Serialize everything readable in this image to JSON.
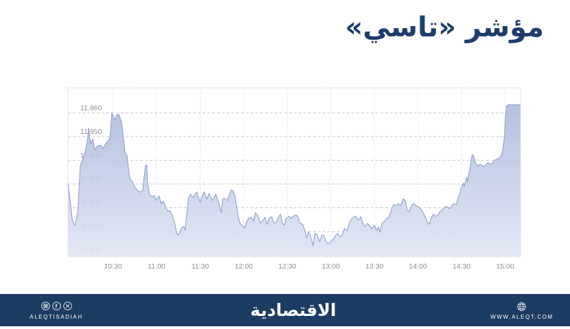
{
  "title": {
    "text": "مؤشر «تاسي»",
    "color": "#1e3d6d"
  },
  "footer": {
    "bar_color": "#1d3c64",
    "left": {
      "icons": [
        "instagram-icon",
        "facebook-icon",
        "x-icon"
      ],
      "label": "ALEQTISADIAH"
    },
    "center": {
      "logo_text": "الاقتصادية"
    },
    "right": {
      "icon": "globe-icon",
      "label": "WWW.ALEQT.COM"
    }
  },
  "chart_data": {
    "type": "area",
    "title": "TASI index intraday",
    "xlabel": "",
    "ylabel": "",
    "x_unit": "minutes after 10:00",
    "xlim": [
      -1,
      310.6
    ],
    "ylim": [
      11899.3,
      11970.5
    ],
    "grid": true,
    "x_ticks": [
      {
        "t": 30,
        "label": "10:30"
      },
      {
        "t": 60,
        "label": "11:00"
      },
      {
        "t": 90,
        "label": "11:30"
      },
      {
        "t": 120,
        "label": "12:00"
      },
      {
        "t": 150,
        "label": "12:30"
      },
      {
        "t": 180,
        "label": "13:00"
      },
      {
        "t": 210,
        "label": "13:30"
      },
      {
        "t": 240,
        "label": "14:00"
      },
      {
        "t": 270,
        "label": "14:30"
      },
      {
        "t": 300,
        "label": "15:00"
      }
    ],
    "y_ticks": [
      {
        "v": 11900,
        "label": "11.900"
      },
      {
        "v": 11910,
        "label": "11.910"
      },
      {
        "v": 11920,
        "label": "11.920"
      },
      {
        "v": 11930,
        "label": "11.930"
      },
      {
        "v": 11940,
        "label": "11.940"
      },
      {
        "v": 11950,
        "label": "11.950"
      },
      {
        "v": 11960,
        "label": "11.960"
      }
    ],
    "grid_color": "#c9c9c9",
    "border_color": "#b3b3b3",
    "label_color": "#8e8e8e",
    "area_fill_top": "#a4b3d9",
    "area_fill_bottom": "#e0e5f3",
    "line_color": "#8da0cc",
    "series": [
      {
        "name": "TASI",
        "points": [
          [
            -1,
            11930
          ],
          [
            0.9,
            11921
          ],
          [
            1.9,
            11915
          ],
          [
            3.8,
            11912.4
          ],
          [
            5.7,
            11918
          ],
          [
            7.5,
            11938
          ],
          [
            9.9,
            11941.7
          ],
          [
            12.2,
            11947.4
          ],
          [
            13.2,
            11953.6
          ],
          [
            14.6,
            11946.9
          ],
          [
            16,
            11949
          ],
          [
            17.4,
            11944.6
          ],
          [
            19.3,
            11946
          ],
          [
            21.7,
            11946.3
          ],
          [
            23.1,
            11944.9
          ],
          [
            25.4,
            11947.4
          ],
          [
            27.8,
            11949
          ],
          [
            28.5,
            11954
          ],
          [
            29.2,
            11960
          ],
          [
            31.1,
            11957
          ],
          [
            32.5,
            11959
          ],
          [
            33.9,
            11959.4
          ],
          [
            35.8,
            11956.2
          ],
          [
            37.2,
            11949.8
          ],
          [
            38.1,
            11943.4
          ],
          [
            39.6,
            11942
          ],
          [
            41,
            11934.4
          ],
          [
            41.9,
            11931.8
          ],
          [
            43.3,
            11931
          ],
          [
            45.2,
            11928.6
          ],
          [
            46.6,
            11927.5
          ],
          [
            48,
            11926.6
          ],
          [
            50.4,
            11927.2
          ],
          [
            52.3,
            11937.6
          ],
          [
            53.2,
            11938.2
          ],
          [
            53.7,
            11931
          ],
          [
            55.1,
            11925.7
          ],
          [
            57,
            11924.6
          ],
          [
            58.4,
            11925.1
          ],
          [
            59.8,
            11923.1
          ],
          [
            61.7,
            11925.1
          ],
          [
            63.1,
            11921.7
          ],
          [
            64.5,
            11922.8
          ],
          [
            66.4,
            11920.2
          ],
          [
            67.8,
            11918.5
          ],
          [
            69.2,
            11918.8
          ],
          [
            71.1,
            11916.4
          ],
          [
            72.5,
            11913.5
          ],
          [
            73.9,
            11909.2
          ],
          [
            74.9,
            11908.6
          ],
          [
            76.3,
            11909.8
          ],
          [
            77.2,
            11911.5
          ],
          [
            78.7,
            11912.1
          ],
          [
            79.6,
            11910.6
          ],
          [
            82,
            11924.3
          ],
          [
            83.4,
            11925.7
          ],
          [
            85.2,
            11924.3
          ],
          [
            87.6,
            11926.6
          ],
          [
            90,
            11922.2
          ],
          [
            91.4,
            11925.1
          ],
          [
            92.8,
            11926.6
          ],
          [
            94.7,
            11923.7
          ],
          [
            96.1,
            11926
          ],
          [
            98.4,
            11923.1
          ],
          [
            100.8,
            11925.7
          ],
          [
            103.1,
            11921.4
          ],
          [
            104.6,
            11917.9
          ],
          [
            105.5,
            11923.7
          ],
          [
            106.9,
            11924
          ],
          [
            108.8,
            11923.1
          ],
          [
            111.2,
            11927.5
          ],
          [
            112.6,
            11927.2
          ],
          [
            114,
            11925.1
          ],
          [
            115.9,
            11917.3
          ],
          [
            117.3,
            11913.5
          ],
          [
            118.7,
            11912.7
          ],
          [
            120.6,
            11911.5
          ],
          [
            122,
            11914.1
          ],
          [
            123.4,
            11915.6
          ],
          [
            125.3,
            11915.9
          ],
          [
            126.7,
            11914.4
          ],
          [
            128.1,
            11917.9
          ],
          [
            130,
            11916.4
          ],
          [
            131.4,
            11913.5
          ],
          [
            132.8,
            11914.4
          ],
          [
            134.7,
            11915.9
          ],
          [
            136.1,
            11913
          ],
          [
            137.5,
            11915.6
          ],
          [
            139.4,
            11916.2
          ],
          [
            140.8,
            11913.5
          ],
          [
            142.2,
            11913.8
          ],
          [
            144.1,
            11916.4
          ],
          [
            145.5,
            11917.3
          ],
          [
            146.5,
            11913.5
          ],
          [
            147.9,
            11912.7
          ],
          [
            149.3,
            11915.6
          ],
          [
            151.2,
            11916.4
          ],
          [
            152.6,
            11915.6
          ],
          [
            154,
            11916.4
          ],
          [
            155.9,
            11917
          ],
          [
            157.3,
            11916.2
          ],
          [
            158.7,
            11913.5
          ],
          [
            160.6,
            11913
          ],
          [
            162,
            11910.6
          ],
          [
            163.4,
            11907.2
          ],
          [
            164.4,
            11909.8
          ],
          [
            165.8,
            11908.6
          ],
          [
            167.7,
            11904
          ],
          [
            169.1,
            11909.2
          ],
          [
            170.5,
            11908.6
          ],
          [
            172.4,
            11905.7
          ],
          [
            173.8,
            11908.6
          ],
          [
            175.2,
            11908.3
          ],
          [
            177.1,
            11905.4
          ],
          [
            178.5,
            11904.8
          ],
          [
            179.9,
            11905.7
          ],
          [
            181.8,
            11906.9
          ],
          [
            183.2,
            11908.3
          ],
          [
            184.6,
            11909.2
          ],
          [
            186.5,
            11907.7
          ],
          [
            187.9,
            11908.6
          ],
          [
            189.3,
            11911.2
          ],
          [
            191.2,
            11910.4
          ],
          [
            192.6,
            11913.5
          ],
          [
            194,
            11915
          ],
          [
            195.9,
            11916.2
          ],
          [
            197.3,
            11916.4
          ],
          [
            198.7,
            11914.7
          ],
          [
            200.6,
            11916.2
          ],
          [
            202,
            11913.5
          ],
          [
            203.4,
            11912.1
          ],
          [
            205.3,
            11913.5
          ],
          [
            206.7,
            11912.1
          ],
          [
            208.1,
            11911.2
          ],
          [
            210,
            11912.7
          ],
          [
            211.4,
            11910.6
          ],
          [
            212.8,
            11911.8
          ],
          [
            213.8,
            11909.7
          ],
          [
            215.2,
            11913.5
          ],
          [
            217.1,
            11914.4
          ],
          [
            218.5,
            11915.6
          ],
          [
            219.9,
            11915.9
          ],
          [
            221.8,
            11919.3
          ],
          [
            223.2,
            11921.4
          ],
          [
            224.6,
            11920.8
          ],
          [
            226.5,
            11921.7
          ],
          [
            227.9,
            11920.8
          ],
          [
            229.3,
            11922.8
          ],
          [
            229.8,
            11923.7
          ],
          [
            231.2,
            11923.1
          ],
          [
            232.6,
            11918.8
          ],
          [
            234,
            11918.5
          ],
          [
            235.9,
            11921.4
          ],
          [
            237.3,
            11921.7
          ],
          [
            238.8,
            11920.8
          ],
          [
            240.7,
            11920.2
          ],
          [
            242.1,
            11919.3
          ],
          [
            243.5,
            11917.9
          ],
          [
            245.4,
            11915.6
          ],
          [
            246.8,
            11913.5
          ],
          [
            247.7,
            11913
          ],
          [
            249.1,
            11915.6
          ],
          [
            250.5,
            11917.3
          ],
          [
            252.4,
            11916.4
          ],
          [
            253.8,
            11917
          ],
          [
            255.2,
            11918.5
          ],
          [
            257.1,
            11919.3
          ],
          [
            258.5,
            11920.2
          ],
          [
            259.9,
            11920.5
          ],
          [
            261.8,
            11919.6
          ],
          [
            263.2,
            11920.8
          ],
          [
            264.6,
            11921.7
          ],
          [
            266.5,
            11921.4
          ],
          [
            267.9,
            11925.1
          ],
          [
            268.9,
            11926
          ],
          [
            269.4,
            11928
          ],
          [
            271.2,
            11930.4
          ],
          [
            271.7,
            11928.9
          ],
          [
            273.6,
            11932.9
          ],
          [
            274.1,
            11931
          ],
          [
            276,
            11937.6
          ],
          [
            276.4,
            11939.7
          ],
          [
            277.4,
            11942.5
          ],
          [
            278.3,
            11941.7
          ],
          [
            279.7,
            11938.8
          ],
          [
            281.2,
            11937.6
          ],
          [
            282.1,
            11938.2
          ],
          [
            283.5,
            11938.2
          ],
          [
            285.4,
            11937.3
          ],
          [
            286.8,
            11938.2
          ],
          [
            288.2,
            11939.1
          ],
          [
            290.1,
            11938.2
          ],
          [
            291.6,
            11939.1
          ],
          [
            293,
            11940.2
          ],
          [
            294.8,
            11940.5
          ],
          [
            296.3,
            11941.1
          ],
          [
            297.7,
            11942.5
          ],
          [
            298.6,
            11945.4
          ],
          [
            299.6,
            11950.4
          ],
          [
            300,
            11957
          ],
          [
            301,
            11962.8
          ],
          [
            301.9,
            11963.4
          ],
          [
            310.5,
            11963.4
          ]
        ]
      }
    ]
  }
}
